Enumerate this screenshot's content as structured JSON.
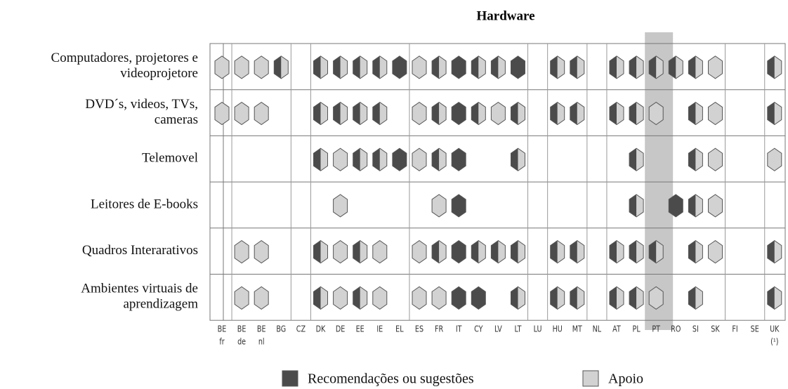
{
  "title": "Hardware",
  "columns": [
    {
      "code": "BE",
      "sub": "fr"
    },
    {
      "code": "BE",
      "sub": "de"
    },
    {
      "code": "BE",
      "sub": "nl"
    },
    {
      "code": "BG"
    },
    {
      "code": "CZ"
    },
    {
      "code": "DK"
    },
    {
      "code": "DE"
    },
    {
      "code": "EE"
    },
    {
      "code": "IE"
    },
    {
      "code": "EL"
    },
    {
      "code": "ES"
    },
    {
      "code": "FR"
    },
    {
      "code": "IT"
    },
    {
      "code": "CY"
    },
    {
      "code": "LV"
    },
    {
      "code": "LT"
    },
    {
      "code": "LU"
    },
    {
      "code": "HU"
    },
    {
      "code": "MT"
    },
    {
      "code": "NL"
    },
    {
      "code": "AT"
    },
    {
      "code": "PL"
    },
    {
      "code": "PT"
    },
    {
      "code": "RO"
    },
    {
      "code": "SI"
    },
    {
      "code": "SK"
    },
    {
      "code": "FI"
    },
    {
      "code": "SE"
    },
    {
      "code": "UK",
      "sub": "(¹)"
    }
  ],
  "highlight_column": 22,
  "rows": [
    {
      "label": [
        "Computadores, projetores e",
        "videoprojetore"
      ],
      "cells": [
        "A",
        "A",
        "A",
        "RA",
        null,
        "RA",
        "RA",
        "RA",
        "RA",
        "R",
        "A",
        "RA",
        "R",
        "RA",
        "RA",
        "R",
        null,
        "RA",
        "RA",
        null,
        "RA",
        "RA",
        "RA",
        "RA",
        "RA",
        "A",
        null,
        null,
        "RA"
      ]
    },
    {
      "label": [
        "DVD´s, videos, TVs,",
        "cameras"
      ],
      "cells": [
        "A",
        "A",
        "A",
        null,
        null,
        "RA",
        "RA",
        "RA",
        "RA",
        null,
        "A",
        "RA",
        "R",
        "RA",
        "A",
        "RA",
        null,
        "RA",
        "RA",
        null,
        "RA",
        "RA",
        "A",
        null,
        "RA",
        "A",
        null,
        null,
        "RA"
      ]
    },
    {
      "label": [
        "Telemovel"
      ],
      "cells": [
        null,
        null,
        null,
        null,
        null,
        "RA",
        "A",
        "RA",
        "RA",
        "R",
        "A",
        "RA",
        "R",
        null,
        null,
        "RA",
        null,
        null,
        null,
        null,
        null,
        "RA",
        null,
        null,
        "RA",
        "A",
        null,
        null,
        "A"
      ]
    },
    {
      "label": [
        "Leitores de E-books"
      ],
      "cells": [
        null,
        null,
        null,
        null,
        null,
        null,
        "A",
        null,
        null,
        null,
        null,
        "A",
        "R",
        null,
        null,
        null,
        null,
        null,
        null,
        null,
        null,
        "RA",
        null,
        "R",
        "RA",
        "A",
        null,
        null,
        null
      ]
    },
    {
      "label": [
        "Quadros Interarativos"
      ],
      "cells": [
        null,
        "A",
        "A",
        null,
        null,
        "RA",
        "A",
        "RA",
        "A",
        null,
        "A",
        "RA",
        "R",
        "RA",
        "RA",
        "RA",
        null,
        "RA",
        "RA",
        null,
        "RA",
        "RA",
        "RA",
        null,
        "RA",
        "A",
        null,
        null,
        "RA"
      ]
    },
    {
      "label": [
        "Ambientes virtuais de",
        "aprendizagem"
      ],
      "cells": [
        null,
        "A",
        "A",
        null,
        null,
        "RA",
        "A",
        "RA",
        "A",
        null,
        "A",
        "A",
        "R",
        "R",
        null,
        "RA",
        null,
        "RA",
        "RA",
        null,
        "RA",
        "RA",
        "A",
        null,
        "RA",
        null,
        null,
        null,
        "RA"
      ]
    }
  ],
  "colors": {
    "R": "#4b4b4b",
    "A": "#d2d2d2"
  },
  "legend": [
    {
      "code": "R",
      "label": "Recomendações ou sugestões"
    },
    {
      "code": "A",
      "label": "Apoio"
    }
  ]
}
